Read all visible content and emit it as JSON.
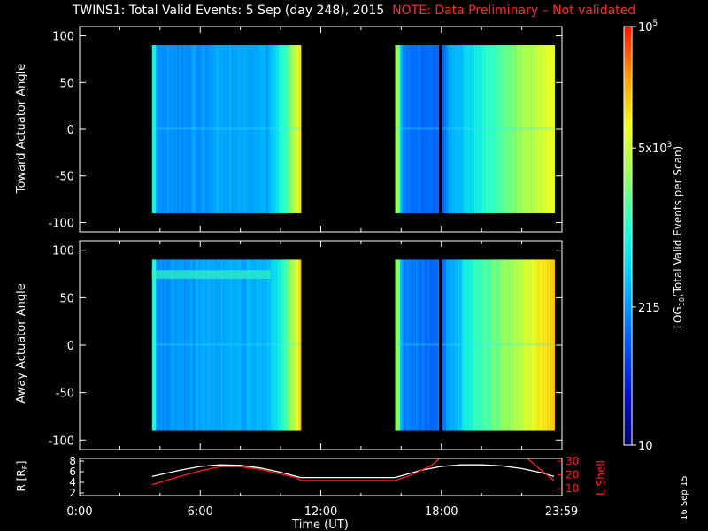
{
  "title": {
    "main": "TWINS1: Total Valid Events:  5 Sep (day 248), 2015",
    "note": "NOTE: Data Preliminary – Not validated"
  },
  "stamp": "16 Sep 15",
  "colors": {
    "background": "#000000",
    "axes": "#ffffff",
    "note": "#ff2a2a",
    "rline": "#ffffff",
    "lshell": "#ff2020"
  },
  "chart_data": [
    {
      "type": "heatmap",
      "panel": "toward",
      "ylabel": "Toward Actuator Angle",
      "ylim": [
        -110,
        110
      ],
      "yticks": [
        100,
        50,
        0,
        -50,
        -100
      ],
      "xlim": [
        0,
        24
      ],
      "coverage_hours": [
        [
          3.6,
          11.0
        ],
        [
          15.7,
          23.6
        ]
      ],
      "angle_range": [
        -90,
        90
      ],
      "data_gap_hours": [
        17.95
      ]
    },
    {
      "type": "heatmap",
      "panel": "away",
      "ylabel": "Away Actuator Angle",
      "ylim": [
        -110,
        110
      ],
      "yticks": [
        100,
        50,
        0,
        -50,
        -100
      ],
      "xlim": [
        0,
        24
      ],
      "coverage_hours": [
        [
          3.6,
          11.0
        ],
        [
          15.7,
          23.6
        ]
      ],
      "angle_range": [
        -90,
        90
      ],
      "data_gap_hours": [
        17.95
      ]
    },
    {
      "type": "line",
      "panel": "orbit",
      "xlabel": "Time (UT)",
      "xticks": [
        "0:00",
        "6:00",
        "12:00",
        "18:00",
        "23:59"
      ],
      "xlim": [
        0,
        24
      ],
      "ylabel_left": "R [R",
      "ylabel_left_sub": "E",
      "ylabel_left_close": "]",
      "yticks_left": [
        2,
        4,
        6,
        8
      ],
      "ylim_left": [
        1.5,
        8.5
      ],
      "ylabel_right": "L Shell",
      "yticks_right": [
        10,
        20,
        30
      ],
      "ylim_right": [
        5,
        32
      ],
      "series": [
        {
          "axis": "left",
          "x": [
            3.6,
            5,
            6,
            7,
            8,
            9,
            10,
            11,
            15.7,
            17,
            18,
            19,
            20,
            21,
            22,
            23,
            23.6
          ],
          "y": [
            5.1,
            6.3,
            7.0,
            7.3,
            7.2,
            6.7,
            5.9,
            4.9,
            4.9,
            6.3,
            7.0,
            7.3,
            7.3,
            7.1,
            6.6,
            5.8,
            5.1
          ]
        },
        {
          "axis": "right",
          "x": [
            3.6,
            5,
            6,
            7,
            8,
            9,
            10.8,
            11,
            15.7,
            16.5,
            17.5,
            18,
            22.2,
            23,
            23.6
          ],
          "y": [
            13,
            19,
            23,
            26,
            26,
            24,
            18,
            16,
            16,
            20,
            27,
            33,
            33,
            23,
            16
          ]
        }
      ]
    }
  ],
  "colorbar": {
    "label_prefix": "LOG",
    "label_sub": "10",
    "label_rest": "(Total Valid Events per Scan)",
    "ticks": [
      {
        "base": "10",
        "exp": "5",
        "frac": 1.0
      },
      {
        "base": "5x10",
        "exp": "3",
        "frac": 0.71
      },
      {
        "base": "215",
        "exp": "",
        "frac": 0.33
      },
      {
        "base": "10",
        "exp": "",
        "frac": 0.0
      }
    ]
  }
}
